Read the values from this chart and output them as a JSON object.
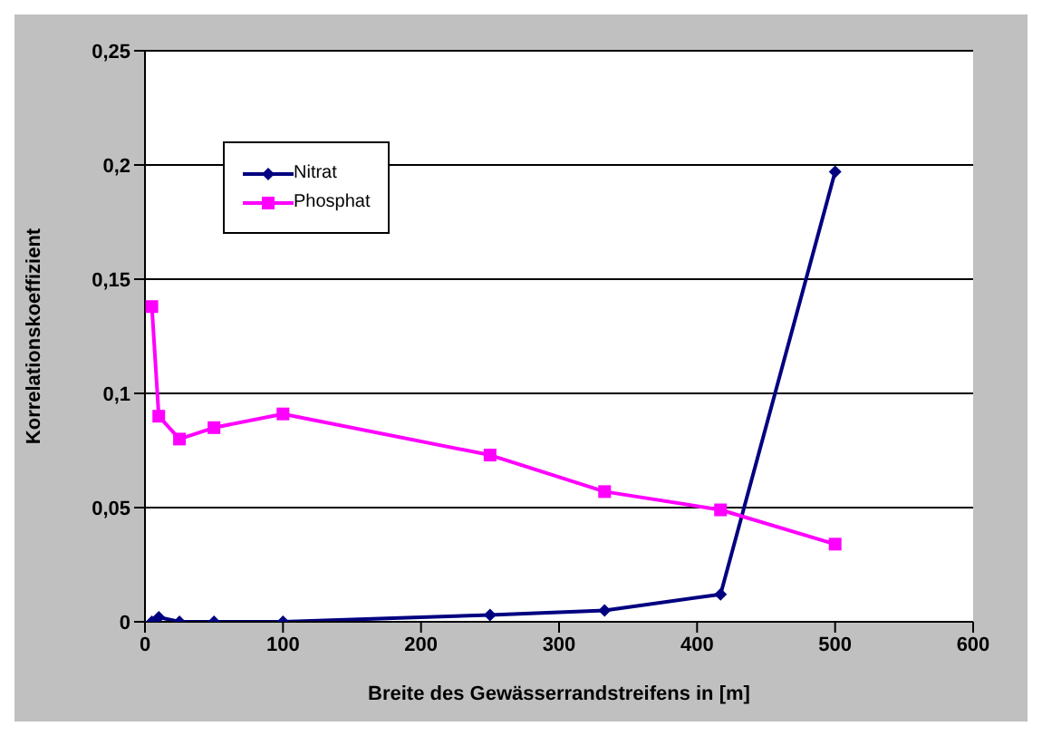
{
  "chart_data": {
    "type": "line",
    "xlabel": "Breite des Gewässerrandstreifens in [m]",
    "ylabel": "Korrelationskoeffizient",
    "x": [
      5,
      10,
      25,
      50,
      100,
      250,
      333,
      417,
      500
    ],
    "series": [
      {
        "name": "Nitrat",
        "color": "#000080",
        "marker": "diamond",
        "values": [
          0,
          0.002,
          0,
          0,
          0,
          0.003,
          0.005,
          0.012,
          0.197
        ]
      },
      {
        "name": "Phosphat",
        "color": "#ff00ff",
        "marker": "square",
        "values": [
          0.138,
          0.09,
          0.08,
          0.085,
          0.091,
          0.073,
          0.057,
          0.049,
          0.034
        ]
      }
    ],
    "xlim": [
      0,
      600
    ],
    "xticks": [
      0,
      100,
      200,
      300,
      400,
      500,
      600
    ],
    "ylim": [
      0,
      0.25
    ],
    "yticks": [
      0,
      {
        "value": 0.05,
        "label": "0,05"
      },
      {
        "value": 0.1,
        "label": "0,1"
      },
      {
        "value": 0.15,
        "label": "0,15"
      },
      {
        "value": 0.2,
        "label": "0,2"
      },
      {
        "value": 0.25,
        "label": "0,25"
      }
    ],
    "grid": "y",
    "legend": "top left",
    "line_style": "solid"
  }
}
